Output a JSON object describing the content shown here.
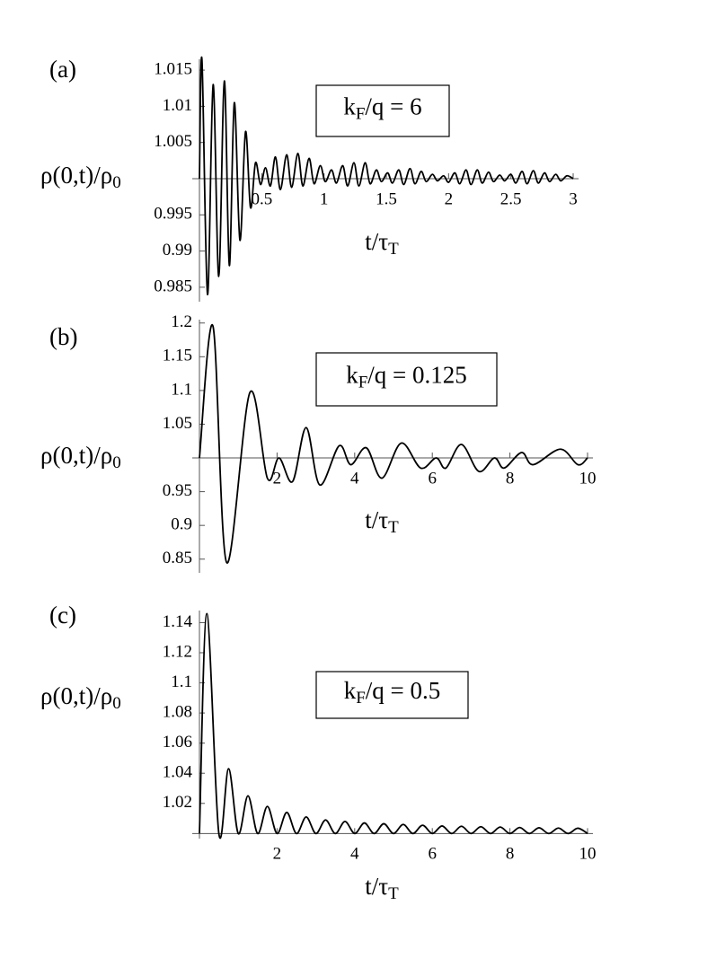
{
  "chart_data": [
    {
      "type": "line",
      "panel": "(a)",
      "annotation": {
        "text": "k",
        "sub": "F",
        "rest": "/q = 6"
      },
      "xlabel": {
        "text": "t/τ",
        "sub": "T"
      },
      "ylabel": {
        "text": "ρ(0,t)/ρ",
        "sub": "0"
      },
      "axis_origin": [
        0,
        1
      ],
      "color": "#000000",
      "xlim": [
        0,
        3
      ],
      "ylim": [
        0.9835,
        1.0165
      ],
      "xticks": [
        0.5,
        1,
        1.5,
        2,
        2.5,
        3
      ],
      "yticks": [
        0.985,
        0.99,
        0.995,
        1.005,
        1.01,
        1.015
      ],
      "x": [
        0,
        0.02,
        0.065,
        0.11,
        0.155,
        0.2,
        0.24,
        0.28,
        0.325,
        0.37,
        0.41,
        0.45,
        0.49,
        0.53,
        0.57,
        0.61,
        0.65,
        0.7,
        0.74,
        0.79,
        0.83,
        0.88,
        0.92,
        0.97,
        1.01,
        1.06,
        1.1,
        1.15,
        1.19,
        1.24,
        1.28,
        1.33,
        1.37,
        1.42,
        1.46,
        1.51,
        1.55,
        1.6,
        1.64,
        1.69,
        1.73,
        1.78,
        1.82,
        1.87,
        1.91,
        1.96,
        2,
        2.05,
        2.09,
        2.14,
        2.18,
        2.23,
        2.27,
        2.32,
        2.36,
        2.41,
        2.45,
        2.5,
        2.54,
        2.59,
        2.63,
        2.68,
        2.72,
        2.77,
        2.81,
        2.86,
        2.9,
        2.95,
        3
      ],
      "values": [
        1,
        1.0165,
        0.984,
        1.013,
        0.9865,
        1.0135,
        0.988,
        1.0105,
        0.9915,
        1.0065,
        0.996,
        1.0022,
        0.9992,
        1.0015,
        0.999,
        1.003,
        0.9985,
        1.0033,
        0.9988,
        1.0035,
        0.999,
        1.0028,
        0.9993,
        1.0018,
        0.9996,
        1.0012,
        0.9994,
        1.0018,
        0.999,
        1.0022,
        0.999,
        1.0022,
        0.9993,
        1.0012,
        0.9996,
        1.0008,
        0.9994,
        1.0012,
        0.9992,
        1.0014,
        0.9993,
        1.001,
        0.9996,
        1.0006,
        0.9997,
        1.0004,
        0.9995,
        1.0008,
        0.9993,
        1.0012,
        0.9992,
        1.0012,
        0.9994,
        1.0009,
        0.9996,
        1.0005,
        0.9997,
        1.0006,
        0.9994,
        1.001,
        0.9993,
        1.0011,
        0.9994,
        1.0008,
        0.9996,
        1.0006,
        0.9997,
        1.0004,
        1
      ]
    },
    {
      "type": "line",
      "panel": "(b)",
      "annotation": {
        "text": "k",
        "sub": "F",
        "rest": "/q = 0.125"
      },
      "xlabel": {
        "text": "t/τ",
        "sub": "T"
      },
      "ylabel": {
        "text": "ρ(0,t)/ρ",
        "sub": "0"
      },
      "axis_origin": [
        0,
        1
      ],
      "color": "#000000",
      "xlim": [
        0,
        10
      ],
      "ylim": [
        0.835,
        1.205
      ],
      "xticks": [
        2,
        4,
        6,
        8,
        10
      ],
      "yticks": [
        0.85,
        0.9,
        0.95,
        1.05,
        1.1,
        1.15,
        1.2
      ],
      "x": [
        0,
        0.35,
        0.7,
        1.3,
        1.75,
        2.05,
        2.4,
        2.75,
        3.1,
        3.6,
        3.9,
        4.3,
        4.7,
        5.2,
        5.7,
        6.1,
        6.35,
        6.75,
        7.2,
        7.6,
        7.85,
        8.3,
        8.6,
        9.3,
        9.75,
        10
      ],
      "values": [
        1,
        1.195,
        0.845,
        1.097,
        0.97,
        1,
        0.965,
        1.045,
        0.96,
        1.018,
        0.99,
        1.015,
        0.97,
        1.022,
        0.985,
        1,
        0.985,
        1.02,
        0.98,
        1,
        0.985,
        1.008,
        0.99,
        1.013,
        0.99,
        1
      ]
    },
    {
      "type": "line",
      "panel": "(c)",
      "annotation": {
        "text": "k",
        "sub": "F",
        "rest": "/q = 0.5"
      },
      "xlabel": {
        "text": "t/τ",
        "sub": "T"
      },
      "ylabel": {
        "text": "ρ(0,t)/ρ",
        "sub": "0"
      },
      "axis_origin": [
        0,
        1
      ],
      "color": "#000000",
      "xlim": [
        0,
        10
      ],
      "ylim": [
        0.999,
        1.148
      ],
      "xticks": [
        2,
        4,
        6,
        8,
        10
      ],
      "yticks": [
        1.02,
        1.04,
        1.06,
        1.08,
        1.1,
        1.12,
        1.14
      ],
      "x": [
        0,
        0.19,
        0.5,
        0.75,
        1,
        1.25,
        1.5,
        1.75,
        2,
        2.25,
        2.5,
        2.75,
        3,
        3.25,
        3.5,
        3.75,
        4,
        4.25,
        4.5,
        4.75,
        5,
        5.25,
        5.5,
        5.75,
        6,
        6.25,
        6.5,
        6.75,
        7,
        7.25,
        7.5,
        7.75,
        8,
        8.25,
        8.5,
        8.75,
        9,
        9.25,
        9.5,
        9.75,
        10
      ],
      "values": [
        1,
        1.146,
        1,
        1.043,
        1,
        1.025,
        1,
        1.018,
        1,
        1.014,
        1,
        1.011,
        1,
        1.009,
        1,
        1.008,
        1,
        1.007,
        1,
        1.0065,
        1,
        1.006,
        1,
        1.0055,
        1,
        1.005,
        1,
        1.0048,
        1,
        1.0045,
        1,
        1.0043,
        1,
        1.004,
        1,
        1.0038,
        1,
        1.0036,
        1,
        1.0035,
        1
      ]
    }
  ]
}
